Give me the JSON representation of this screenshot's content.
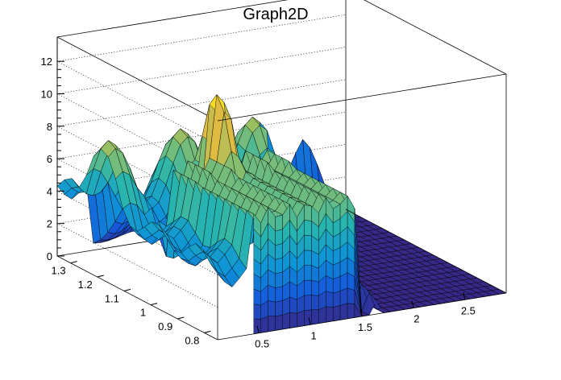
{
  "chart_data": {
    "type": "surface",
    "title": "Graph2D",
    "xlabel": "",
    "ylabel": "",
    "zlabel": "",
    "x_ticks": [
      "0.5",
      "1",
      "1.5",
      "2",
      "2.5"
    ],
    "x_tick_values": [
      0.5,
      1,
      1.5,
      2,
      2.5
    ],
    "y_ticks": [
      "0.8",
      "0.9",
      "1",
      "1.1",
      "1.2",
      "1.3"
    ],
    "y_tick_values": [
      0.8,
      0.9,
      1.0,
      1.1,
      1.2,
      1.3
    ],
    "z_ticks": [
      "0",
      "2",
      "4",
      "6",
      "8",
      "10",
      "12"
    ],
    "z_tick_values": [
      0,
      2,
      4,
      6,
      8,
      10,
      12
    ],
    "xlim": [
      0.1,
      2.9
    ],
    "ylim": [
      0.75,
      1.35
    ],
    "zlim": [
      0,
      13.5
    ],
    "grid": true,
    "colormap": "parula",
    "features": {
      "front_wall": {
        "x_range": [
          0.4,
          1.45
        ],
        "y": 0.78,
        "z_top": 7.2
      },
      "peak": {
        "x": 0.9,
        "y": 1.05,
        "z": 12.5
      },
      "spike": {
        "x": 1.7,
        "y": 0.85,
        "z": 9.5
      },
      "background_ridge_z": 8.5,
      "flat_floor_x": [
        1.75,
        2.9
      ]
    }
  }
}
